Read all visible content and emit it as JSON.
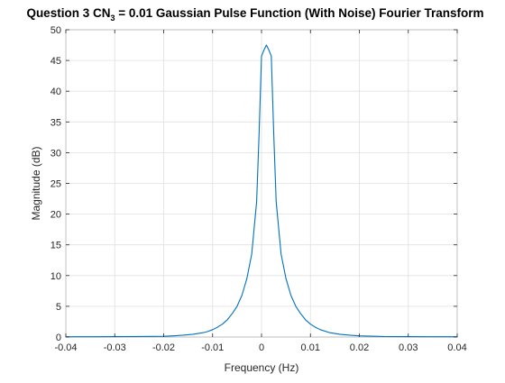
{
  "window": {
    "title_main": "Question 3 CN",
    "title_sub": "3",
    "title_rest": " = 0.01 Gaussian Pulse Function (With Noise) Fourier Transform"
  },
  "chart_data": {
    "type": "line",
    "title": "Question 3 CN_3 = 0.01 Gaussian Pulse Function (With Noise) Fourier Transform",
    "xlabel": "Frequency (Hz)",
    "ylabel": "Magnitude (dB)",
    "xlim": [
      -0.04,
      0.04
    ],
    "ylim": [
      0,
      50
    ],
    "xticks": [
      -0.04,
      -0.03,
      -0.02,
      -0.01,
      0,
      0.01,
      0.02,
      0.03,
      0.04
    ],
    "xtick_labels": [
      "-0.04",
      "-0.03",
      "-0.02",
      "-0.01",
      "0",
      "0.01",
      "0.02",
      "0.03",
      "0.04"
    ],
    "yticks": [
      0,
      5,
      10,
      15,
      20,
      25,
      30,
      35,
      40,
      45,
      50
    ],
    "ytick_labels": [
      "0",
      "5",
      "10",
      "15",
      "20",
      "25",
      "30",
      "35",
      "40",
      "45",
      "50"
    ],
    "grid": true,
    "line_color": "#0072BD",
    "series": [
      {
        "x": [
          -0.04,
          -0.035,
          -0.03,
          -0.025,
          -0.02,
          -0.018,
          -0.016,
          -0.014,
          -0.012,
          -0.011,
          -0.01,
          -0.009,
          -0.008,
          -0.007,
          -0.006,
          -0.005,
          -0.004,
          -0.003,
          -0.002,
          -0.001,
          -0.0005,
          0,
          0.0005,
          0.001,
          0.0015,
          0.002,
          0.0025,
          0.003,
          0.004,
          0.005,
          0.006,
          0.007,
          0.008,
          0.009,
          0.01,
          0.011,
          0.012,
          0.014,
          0.016,
          0.018,
          0.02,
          0.025,
          0.03,
          0.035,
          0.04
        ],
        "y": [
          0.05,
          0.05,
          0.06,
          0.08,
          0.12,
          0.2,
          0.3,
          0.45,
          0.7,
          0.9,
          1.2,
          1.6,
          2.1,
          2.8,
          3.8,
          5.0,
          6.8,
          9.5,
          13.5,
          22.0,
          33.0,
          45.7,
          46.7,
          47.5,
          46.7,
          45.7,
          33.0,
          22.0,
          13.5,
          9.5,
          6.8,
          5.0,
          3.8,
          2.8,
          2.1,
          1.6,
          1.2,
          0.7,
          0.45,
          0.3,
          0.2,
          0.08,
          0.06,
          0.05,
          0.05
        ]
      }
    ]
  }
}
